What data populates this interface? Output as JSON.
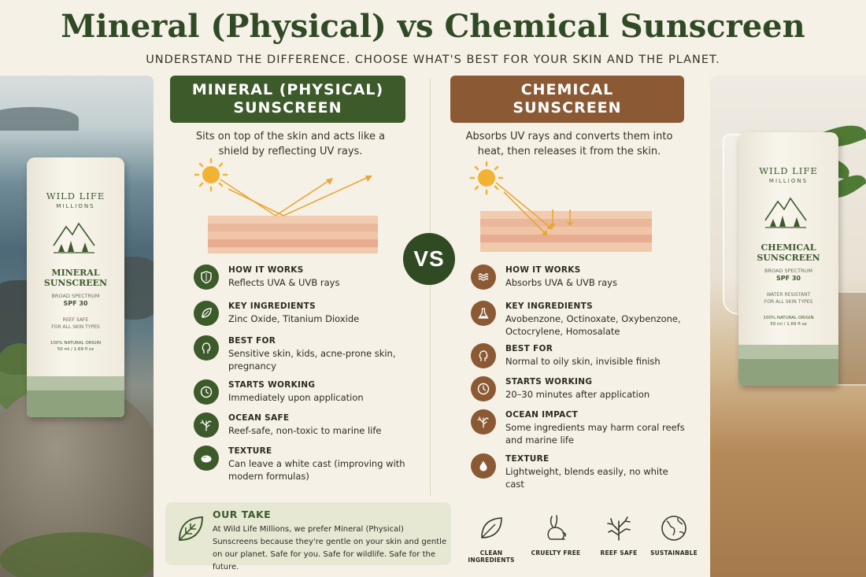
{
  "header": {
    "title": "Mineral (Physical) vs Chemical Sunscreen",
    "subtitle": "UNDERSTAND THE DIFFERENCE. CHOOSE WHAT'S BEST FOR YOUR SKIN AND THE PLANET."
  },
  "products": {
    "left": {
      "brand": "WILD LIFE",
      "brand_sub": "MILLIONS",
      "name_line1": "MINERAL",
      "name_line2": "SUNSCREEN",
      "broad": "BROAD SPECTRUM",
      "spf": "SPF 30",
      "note1": "REEF SAFE",
      "note2": "FOR ALL SKIN TYPES",
      "origin": "100% NATURAL ORIGIN",
      "size": "50 ml / 1.69 fl oz"
    },
    "right": {
      "brand": "WILD LIFE",
      "brand_sub": "MILLIONS",
      "name_line1": "CHEMICAL",
      "name_line2": "SUNSCREEN",
      "broad": "BROAD SPECTRUM",
      "spf": "SPF 30",
      "note1": "WATER RESISTANT",
      "note2": "FOR ALL SKIN TYPES",
      "origin": "100% NATURAL ORIGIN",
      "size": "50 ml / 1.69 fl oz"
    }
  },
  "vs_label": "VS",
  "mineral": {
    "heading_line1": "MINERAL (PHYSICAL)",
    "heading_line2": "SUNSCREEN",
    "description": "Sits on top of the skin and acts like a shield by reflecting UV rays.",
    "features": [
      {
        "icon": "shield-icon",
        "label": "HOW IT WORKS",
        "value": "Reflects UVA & UVB rays"
      },
      {
        "icon": "leaf-icon",
        "label": "KEY INGREDIENTS",
        "value": "Zinc Oxide, Titanium Dioxide"
      },
      {
        "icon": "face-icon",
        "label": "BEST FOR",
        "value": "Sensitive skin, kids, acne-prone skin, pregnancy"
      },
      {
        "icon": "clock-icon",
        "label": "STARTS WORKING",
        "value": "Immediately upon application"
      },
      {
        "icon": "coral-icon",
        "label": "OCEAN SAFE",
        "value": "Reef-safe, non-toxic to marine life"
      },
      {
        "icon": "cream-icon",
        "label": "TEXTURE",
        "value": "Can leave a white cast (improving with modern formulas)"
      }
    ]
  },
  "chemical": {
    "heading_line1": "CHEMICAL",
    "heading_line2": "SUNSCREEN",
    "description": "Absorbs UV rays and converts them into heat, then releases it from the skin.",
    "features": [
      {
        "icon": "waves-icon",
        "label": "HOW IT WORKS",
        "value": "Absorbs UVA & UVB rays"
      },
      {
        "icon": "flask-icon",
        "label": "KEY INGREDIENTS",
        "value": "Avobenzone, Octinoxate, Oxybenzone, Octocrylene, Homosalate"
      },
      {
        "icon": "face-icon",
        "label": "BEST FOR",
        "value": "Normal to oily skin, invisible finish"
      },
      {
        "icon": "clock-icon",
        "label": "STARTS WORKING",
        "value": "20–30 minutes after application"
      },
      {
        "icon": "coral-icon",
        "label": "OCEAN IMPACT",
        "value": "Some ingredients may harm coral reefs and marine life"
      },
      {
        "icon": "drop-icon",
        "label": "TEXTURE",
        "value": "Lightweight, blends easily, no white cast"
      }
    ]
  },
  "our_take": {
    "title": "OUR TAKE",
    "body": "At Wild Life Millions, we prefer Mineral (Physical) Sunscreens because they're gentle on your skin and gentle on our planet. Safe for you. Safe for wildlife. Safe for the future."
  },
  "badges": [
    {
      "icon": "leaf-outline-icon",
      "label": "CLEAN INGREDIENTS"
    },
    {
      "icon": "rabbit-icon",
      "label": "CRUELTY FREE"
    },
    {
      "icon": "coral-outline-icon",
      "label": "REEF SAFE"
    },
    {
      "icon": "globe-icon",
      "label": "SUSTAINABLE"
    }
  ],
  "colors": {
    "mineral_green": "#3d5a2a",
    "chemical_brown": "#8b5a35",
    "title_green": "#2f4a25",
    "sun": "#f2b233"
  }
}
